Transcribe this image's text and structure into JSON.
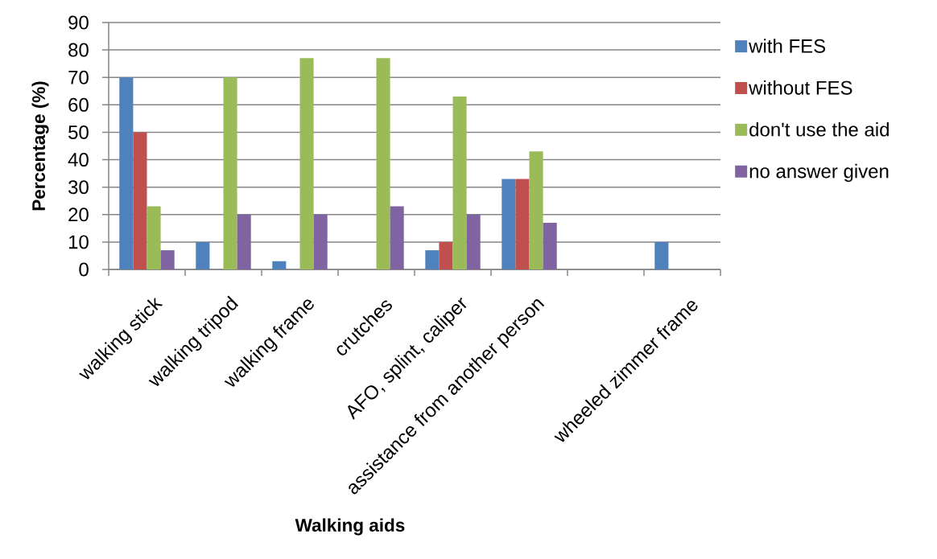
{
  "chart_data": {
    "type": "bar",
    "xlabel": "Walking aids",
    "ylabel": "Percentage (%)",
    "categories": [
      "walking stick",
      "walking tripod",
      "walking frame",
      "crutches",
      "AFO, splint, caliper",
      "assistance from another person",
      null,
      "wheeled zimmer frame"
    ],
    "series": [
      {
        "name": "with FES",
        "color": "#4f81bd",
        "values": [
          70,
          10,
          3,
          0,
          7,
          33,
          0,
          10
        ]
      },
      {
        "name": "without FES",
        "color": "#c0504d",
        "values": [
          50,
          0,
          0,
          0,
          10,
          33,
          0,
          0
        ]
      },
      {
        "name": "don't use the aid",
        "color": "#9bbb59",
        "values": [
          23,
          70,
          77,
          77,
          63,
          43,
          0,
          0
        ]
      },
      {
        "name": "no answer given",
        "color": "#8064a2",
        "values": [
          7,
          20,
          20,
          23,
          20,
          17,
          0,
          0
        ]
      }
    ],
    "ylim": [
      0,
      90
    ],
    "yticks": [
      0,
      10,
      20,
      30,
      40,
      50,
      60,
      70,
      80,
      90
    ],
    "grid": "y",
    "legend": "right"
  }
}
